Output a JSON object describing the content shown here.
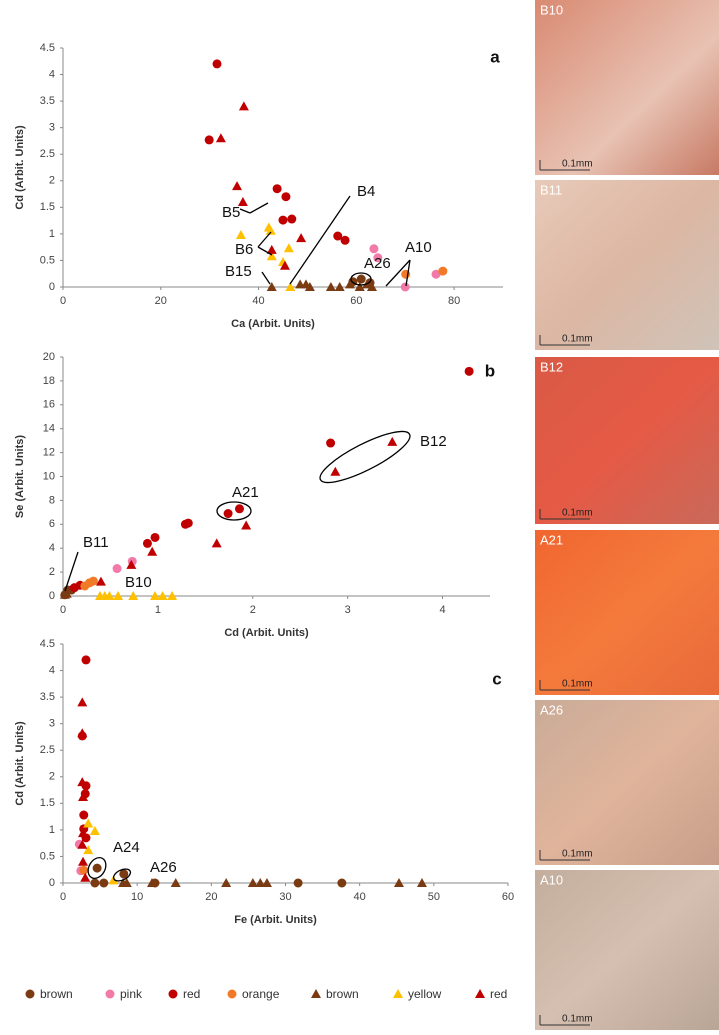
{
  "chart_data": [
    {
      "type": "scatter",
      "panel": "a",
      "x_label": "Ca (Arbit. Units)",
      "y_label": "Cd (Arbit. Units)",
      "xlim": [
        0,
        90
      ],
      "xticks": [
        0,
        20,
        40,
        60,
        80
      ],
      "ylim": [
        0,
        4.5
      ],
      "yticks": [
        0,
        0.5,
        1,
        1.5,
        2,
        2.5,
        3,
        3.5,
        4,
        4.5
      ],
      "annotations": [
        "B5",
        "B6",
        "B4",
        "B15",
        "A10",
        "A26"
      ],
      "series": [
        {
          "marker": "circle",
          "color": "#7a3b12",
          "x": [
            59.3,
            61,
            62.8
          ],
          "values": [
            0.1,
            0.15,
            0.08
          ]
        },
        {
          "marker": "circle",
          "color": "#f27aa8",
          "x": [
            63.6,
            64.4,
            70,
            76.3
          ],
          "values": [
            0.72,
            0.55,
            0,
            0.24
          ]
        },
        {
          "marker": "circle",
          "color": "#c00000",
          "x": [
            31.5,
            29.9,
            43.8,
            45.6,
            45,
            46.8,
            56.2,
            57.7
          ],
          "values": [
            4.2,
            2.77,
            1.85,
            1.7,
            1.26,
            1.28,
            0.96,
            0.88
          ]
        },
        {
          "marker": "circle",
          "color": "#f07a28",
          "x": [
            70.1,
            77.7
          ],
          "values": [
            0.24,
            0.3
          ]
        },
        {
          "marker": "triangle",
          "color": "#7a3b12",
          "x": [
            42.7,
            48.5,
            49.7,
            50.5,
            54.8,
            56.6,
            58.7,
            60.7,
            62.2,
            63.2
          ],
          "values": [
            0,
            0.05,
            0.05,
            0,
            0,
            0,
            0.05,
            0,
            0.05,
            0
          ]
        },
        {
          "marker": "triangle",
          "color": "#ffc000",
          "x": [
            36.4,
            42.1,
            42.5,
            46.2,
            42.7,
            45,
            46.5
          ],
          "values": [
            0.98,
            1.12,
            1.06,
            0.73,
            0.58,
            0.47,
            0
          ]
        },
        {
          "marker": "triangle",
          "color": "#c00000",
          "x": [
            37,
            32.3,
            35.6,
            36.8,
            48.7,
            42.7,
            45.4
          ],
          "values": [
            3.4,
            2.8,
            1.9,
            1.6,
            0.92,
            0.7,
            0.4
          ]
        }
      ]
    },
    {
      "type": "scatter",
      "panel": "b",
      "x_label": "Cd (Arbit. Units)",
      "y_label": "Se (Arbit. Units)",
      "xlim": [
        0,
        4.5
      ],
      "xticks": [
        0,
        1,
        2,
        3,
        4
      ],
      "ylim": [
        0,
        20
      ],
      "yticks": [
        0,
        2,
        4,
        6,
        8,
        10,
        12,
        14,
        16,
        18,
        20
      ],
      "annotations": [
        "A21",
        "B12",
        "B11",
        "B10"
      ],
      "series": [
        {
          "marker": "circle",
          "color": "#7a3b12",
          "x": [
            0.02,
            0.05,
            0.09
          ],
          "values": [
            0.1,
            0.5,
            0.5
          ]
        },
        {
          "marker": "circle",
          "color": "#f27aa8",
          "x": [
            0.73,
            0.57
          ],
          "values": [
            2.9,
            2.3
          ]
        },
        {
          "marker": "circle",
          "color": "#c00000",
          "x": [
            4.28,
            2.82,
            1.86,
            1.74,
            1.29,
            1.32,
            0.97,
            0.89,
            0.12,
            0.18
          ],
          "values": [
            18.8,
            12.8,
            7.3,
            6.9,
            6,
            6.1,
            4.9,
            4.4,
            0.7,
            0.9
          ]
        },
        {
          "marker": "circle",
          "color": "#f07a28",
          "x": [
            0.23,
            0.28,
            0.32
          ],
          "values": [
            0.84,
            1.1,
            1.25
          ]
        },
        {
          "marker": "triangle",
          "color": "#7a3b12",
          "x": [
            0.02,
            0.04
          ],
          "values": [
            0.1,
            0.2
          ]
        },
        {
          "marker": "triangle",
          "color": "#ffc000",
          "x": [
            0.39,
            0.44,
            0.49,
            0.58,
            0.74,
            0.97,
            1.05,
            1.15
          ],
          "values": [
            0,
            0,
            0,
            0,
            0,
            0,
            0,
            0
          ]
        },
        {
          "marker": "triangle",
          "color": "#c00000",
          "x": [
            3.47,
            2.87,
            1.93,
            1.62,
            0.94,
            0.72,
            0.4
          ],
          "values": [
            12.9,
            10.4,
            5.9,
            4.4,
            3.7,
            2.6,
            1.2
          ]
        }
      ]
    },
    {
      "type": "scatter",
      "panel": "c",
      "x_label": "Fe (Arbit. Units)",
      "y_label": "Cd (Arbit. Units)",
      "xlim": [
        0,
        60
      ],
      "xticks": [
        0,
        10,
        20,
        30,
        40,
        50,
        60
      ],
      "ylim": [
        0,
        4.5
      ],
      "yticks": [
        0,
        0.5,
        1,
        1.5,
        2,
        2.5,
        3,
        3.5,
        4,
        4.5
      ],
      "annotations": [
        "A24",
        "A26"
      ],
      "series": [
        {
          "name": "brown",
          "marker": "circle",
          "color": "#7a3b12",
          "x": [
            4.6,
            8.2,
            4.3,
            5.5,
            12.4,
            31.7,
            37.6
          ],
          "values": [
            0.28,
            0.17,
            0,
            0,
            0,
            0,
            0
          ]
        },
        {
          "name": "pink",
          "marker": "circle",
          "color": "#f27aa8",
          "x": [
            2.2,
            2.4
          ],
          "values": [
            0.73,
            0.23
          ]
        },
        {
          "name": "red",
          "marker": "circle",
          "color": "#c00000",
          "x": [
            3.1,
            2.6,
            3.1,
            3,
            2.8,
            2.8,
            3.1
          ],
          "values": [
            4.2,
            2.77,
            1.83,
            1.68,
            1.28,
            1.02,
            0.85
          ]
        },
        {
          "name": "orange",
          "marker": "circle",
          "color": "#f07a28",
          "x": [
            2.8
          ],
          "values": [
            0.24
          ]
        },
        {
          "name": "brown",
          "marker": "triangle",
          "color": "#7a3b12",
          "x": [
            8.1,
            8.6,
            12,
            15.2,
            22,
            25.6,
            26.6,
            27.5,
            45.3,
            48.4
          ],
          "values": [
            0,
            0,
            0,
            0,
            0,
            0,
            0,
            0,
            0,
            0
          ]
        },
        {
          "name": "yellow",
          "marker": "triangle",
          "color": "#ffc000",
          "x": [
            3.4,
            4.3,
            3.4,
            6.8
          ],
          "values": [
            1.12,
            0.98,
            0.62,
            0.05
          ]
        },
        {
          "name": "red",
          "marker": "triangle",
          "color": "#c00000",
          "x": [
            2.6,
            2.6,
            2.6,
            2.7,
            2.7,
            2.6,
            2.7,
            3
          ],
          "values": [
            3.4,
            2.82,
            1.9,
            1.62,
            0.94,
            0.72,
            0.4,
            0.1
          ]
        }
      ]
    }
  ],
  "photos": [
    {
      "label": "B10",
      "scale": "0.1mm"
    },
    {
      "label": "B11",
      "scale": "0.1mm"
    },
    {
      "label": "B12",
      "scale": "0.1mm"
    },
    {
      "label": "A21",
      "scale": "0.1mm"
    },
    {
      "label": "A26",
      "scale": "0.1mm"
    },
    {
      "label": "A10",
      "scale": "0.1mm"
    }
  ]
}
